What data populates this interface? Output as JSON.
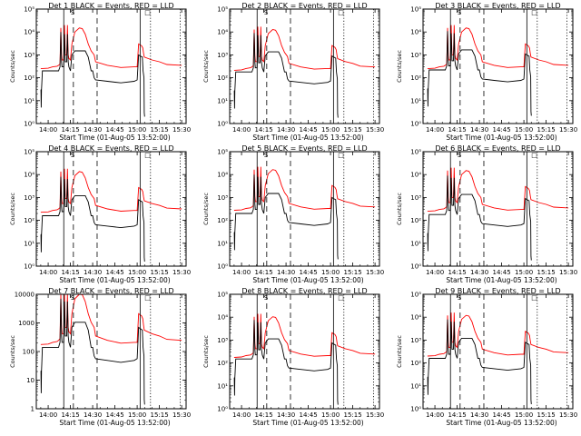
{
  "chart_data": {
    "type": "line",
    "xlabel": "Start Time (01-Aug-05 13:52:00)",
    "ylabel": "Counts/sec",
    "x_tick_labels": [
      "14:00",
      "14:15",
      "14:30",
      "14:45",
      "15:00",
      "15:15",
      "15:30"
    ],
    "x_tick_minutes": [
      0,
      15,
      30,
      45,
      60,
      75,
      90
    ],
    "x_units": "minutes after 14:00",
    "xlim_minutes": [
      -8,
      93
    ],
    "y_scale": "log",
    "ylim": [
      1,
      100000
    ],
    "grid": false,
    "legend": "none",
    "colors": {
      "events": "#000000",
      "lld": "#ff0000",
      "axes": "#000000"
    },
    "vertical_markers": [
      {
        "minute": 10.5,
        "style": "solid"
      },
      {
        "minute": 17,
        "style": "dashed"
      },
      {
        "minute": 33,
        "style": "dashed"
      },
      {
        "minute": 62,
        "style": "solid"
      },
      {
        "minute": 69,
        "style": "dotted"
      },
      {
        "minute": 89,
        "style": "dotted"
      }
    ],
    "panel_top_glyphs": [
      {
        "minute": 16.5,
        "symbol": "S"
      },
      {
        "minute": 67,
        "symbol": "□"
      }
    ],
    "series": [
      {
        "name": "Events",
        "color": "#000000",
        "points": [
          [
            -5,
            30
          ],
          [
            -4.9,
            30
          ],
          [
            -4.7,
            5
          ],
          [
            -4.5,
            30
          ],
          [
            -4.3,
            50
          ],
          [
            -3.9,
            200
          ],
          [
            0,
            200
          ],
          [
            7,
            200
          ],
          [
            8,
            300
          ],
          [
            8.5,
            10000
          ],
          [
            9,
            500
          ],
          [
            9.3,
            300
          ],
          [
            10.5,
            300
          ],
          [
            11,
            8000
          ],
          [
            11.5,
            500
          ],
          [
            12.5,
            500
          ],
          [
            13,
            8000
          ],
          [
            13.5,
            500
          ],
          [
            14,
            300
          ],
          [
            15,
            200
          ],
          [
            16,
            1000
          ],
          [
            18,
            1500
          ],
          [
            22,
            1500
          ],
          [
            25,
            1500
          ],
          [
            27,
            800
          ],
          [
            29,
            200
          ],
          [
            30,
            200
          ],
          [
            31,
            100
          ],
          [
            32,
            80
          ],
          [
            40,
            70
          ],
          [
            49,
            60
          ],
          [
            58,
            70
          ],
          [
            60,
            80
          ],
          [
            61,
            1000
          ],
          [
            62,
            900
          ],
          [
            63.5,
            800
          ],
          [
            64,
            200
          ],
          [
            64.6,
            100
          ],
          [
            64.8,
            3
          ],
          [
            65,
            2
          ]
        ]
      },
      {
        "name": "LLD",
        "color": "#ff0000",
        "points": [
          [
            -5,
            250
          ],
          [
            0,
            260
          ],
          [
            3,
            300
          ],
          [
            6,
            320
          ],
          [
            7,
            350
          ],
          [
            8,
            400
          ],
          [
            8.5,
            15000
          ],
          [
            9,
            1000
          ],
          [
            9.4,
            600
          ],
          [
            10.5,
            600
          ],
          [
            11,
            20000
          ],
          [
            11.5,
            1000
          ],
          [
            12.5,
            1000
          ],
          [
            13,
            20000
          ],
          [
            13.5,
            1000
          ],
          [
            14,
            700
          ],
          [
            15,
            600
          ],
          [
            16,
            3000
          ],
          [
            18,
            10000
          ],
          [
            21,
            15000
          ],
          [
            23,
            14000
          ],
          [
            25,
            8000
          ],
          [
            27,
            3000
          ],
          [
            29,
            1500
          ],
          [
            31,
            1000
          ],
          [
            32,
            500
          ],
          [
            40,
            350
          ],
          [
            49,
            280
          ],
          [
            58,
            300
          ],
          [
            60,
            300
          ],
          [
            61,
            3000
          ],
          [
            63,
            2500
          ],
          [
            63.8,
            2000
          ],
          [
            64.3,
            1200
          ],
          [
            64.8,
            800
          ],
          [
            70,
            600
          ],
          [
            75,
            500
          ],
          [
            80,
            380
          ],
          [
            90,
            350
          ]
        ]
      }
    ],
    "panels": [
      {
        "title": "Det 1 BLACK = Events, RED = LLD",
        "y_tick_labels": [
          "10⁰",
          "10¹",
          "10²",
          "10³",
          "10⁴",
          "10⁵"
        ],
        "events_scale": 1.0,
        "lld_scale": 1.0
      },
      {
        "title": "Det 2 BLACK = Events, RED = LLD",
        "y_tick_labels": [
          "10⁰",
          "10¹",
          "10²",
          "10³",
          "10⁴",
          "10⁵"
        ],
        "events_scale": 0.9,
        "lld_scale": 0.85
      },
      {
        "title": "Det 3 BLACK = Events, RED = LLD",
        "y_tick_labels": [
          "10⁰",
          "10¹",
          "10²",
          "10³",
          "10⁴",
          "10⁵"
        ],
        "events_scale": 1.1,
        "lld_scale": 1.0
      },
      {
        "title": "Det 4 BLACK = Events, RED = LLD",
        "y_tick_labels": [
          "10⁰",
          "10¹",
          "10²",
          "10³",
          "10⁴",
          "10⁵"
        ],
        "events_scale": 0.8,
        "lld_scale": 0.9
      },
      {
        "title": "Det 5 BLACK = Events, RED = LLD",
        "y_tick_labels": [
          "10⁰",
          "10¹",
          "10²",
          "10³",
          "10⁴",
          "10⁵"
        ],
        "events_scale": 1.0,
        "lld_scale": 1.1
      },
      {
        "title": "Det 6 BLACK = Events, RED = LLD",
        "y_tick_labels": [
          "10⁰",
          "10¹",
          "10²",
          "10³",
          "10⁴",
          "10⁵"
        ],
        "events_scale": 0.9,
        "lld_scale": 1.0
      },
      {
        "title": "Det 7 BLACK = Events, RED = LLD",
        "y_tick_labels": [
          "1",
          "10",
          "100",
          "1000",
          "10000"
        ],
        "ylim": [
          1,
          10000
        ],
        "events_scale": 0.7,
        "lld_scale": 0.7
      },
      {
        "title": "Det 8 BLACK = Events, RED = LLD",
        "y_tick_labels": [
          "10⁰",
          "10¹",
          "10²",
          "10³",
          "10⁴",
          "10⁵"
        ],
        "events_scale": 0.75,
        "lld_scale": 0.7
      },
      {
        "title": "Det 9 BLACK = Events, RED = LLD",
        "y_tick_labels": [
          "10⁰",
          "10¹",
          "10²",
          "10³",
          "10⁴",
          "10⁵"
        ],
        "events_scale": 0.8,
        "lld_scale": 0.8
      }
    ]
  }
}
